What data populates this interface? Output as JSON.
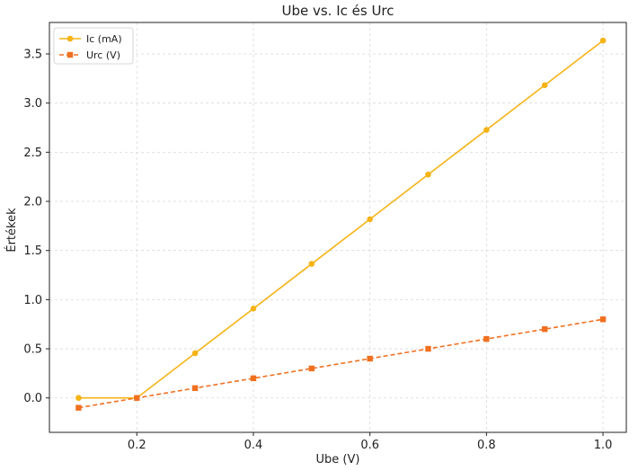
{
  "chart_data": {
    "type": "line",
    "title": "Ube vs. Ic és Urc",
    "xlabel": "Ube (V)",
    "ylabel": "Értékek",
    "xlim": [
      0.05,
      1.04
    ],
    "ylim": [
      -0.35,
      3.82
    ],
    "xticks": [
      0.2,
      0.4,
      0.6,
      0.8,
      1.0
    ],
    "xtick_labels": [
      "0.2",
      "0.4",
      "0.6",
      "0.8",
      "1.0"
    ],
    "yticks": [
      0.0,
      0.5,
      1.0,
      1.5,
      2.0,
      2.5,
      3.0,
      3.5
    ],
    "ytick_labels": [
      "0.0",
      "0.5",
      "1.0",
      "1.5",
      "2.0",
      "2.5",
      "3.0",
      "3.5"
    ],
    "grid": true,
    "legend_position": "top-left",
    "x": [
      0.1,
      0.2,
      0.3,
      0.4,
      0.5,
      0.6,
      0.7,
      0.8,
      0.9,
      1.0
    ],
    "series": [
      {
        "name": "Ic (mA)",
        "values": [
          0.0,
          0.0,
          0.455,
          0.909,
          1.364,
          1.818,
          2.273,
          2.727,
          3.182,
          3.636
        ],
        "color": "#f5b316",
        "line_style": "solid",
        "marker": "circle"
      },
      {
        "name": "Urc (V)",
        "values": [
          -0.1,
          0.0,
          0.1,
          0.2,
          0.3,
          0.4,
          0.5,
          0.6,
          0.7,
          0.8
        ],
        "color": "#f07020",
        "line_style": "dashed",
        "marker": "square"
      }
    ]
  }
}
